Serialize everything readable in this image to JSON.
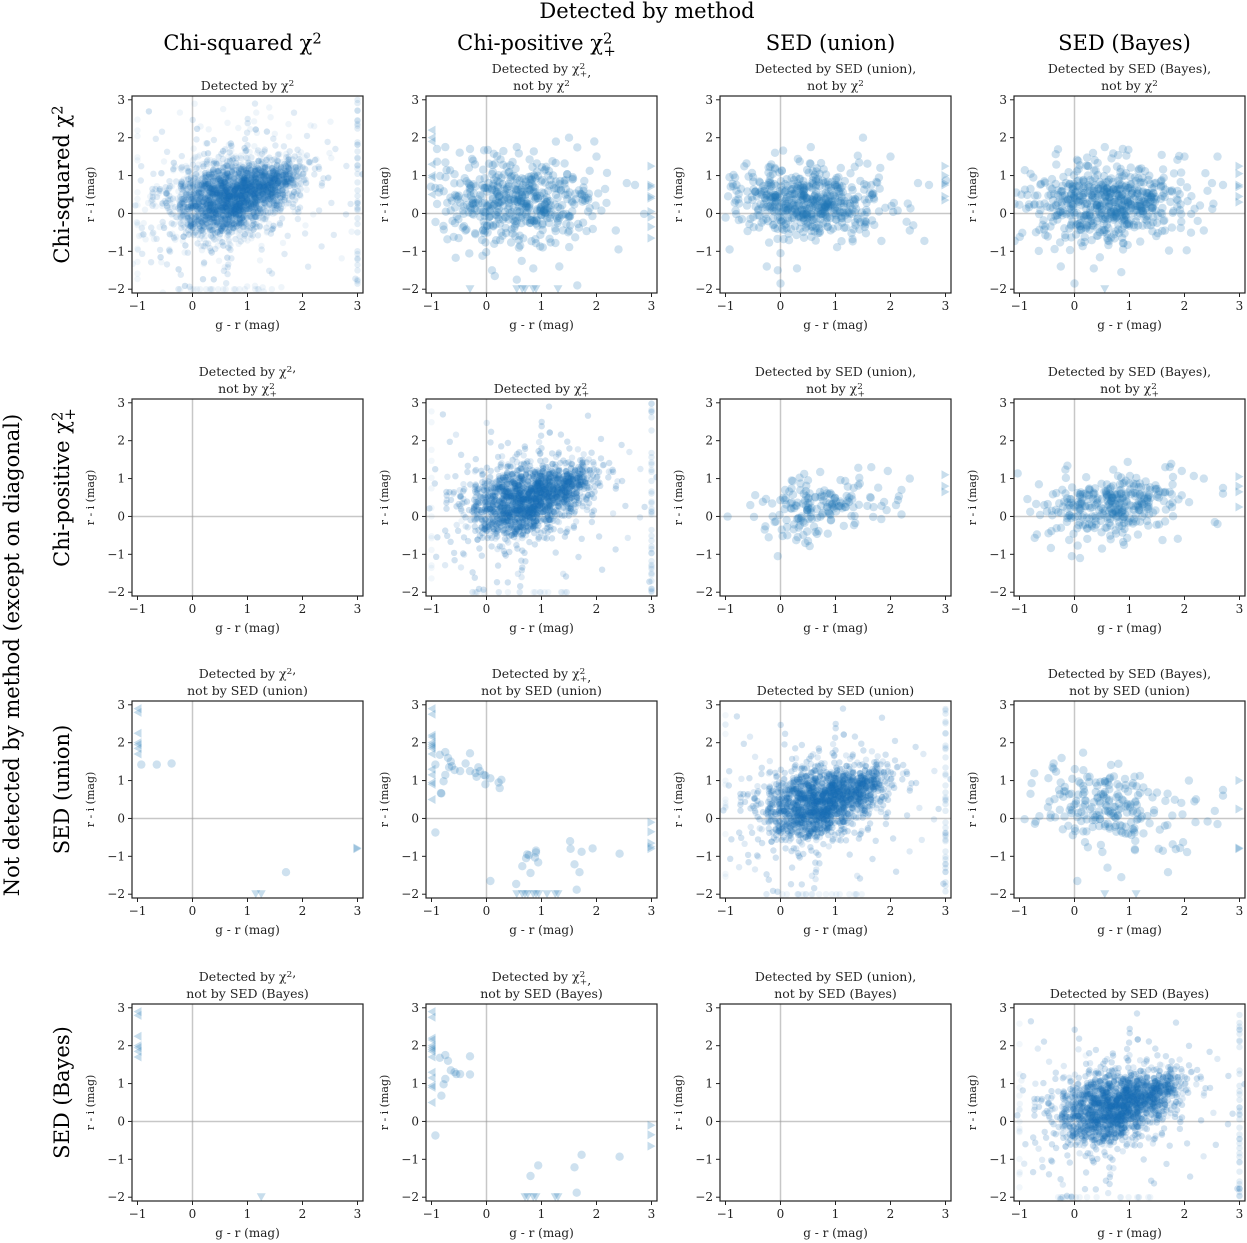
{
  "chart_data": {
    "type": "scatter",
    "suptitle": "Detected by method",
    "row_axis_title": "Not detected by method (except on diagonal)",
    "methods": [
      "Chi-squared χ²",
      "Chi-positive χ²₊",
      "SED (union)",
      "SED (Bayes)"
    ],
    "column_titles": [
      {
        "text": "Chi-squared χ",
        "sup": "2",
        "sub": ""
      },
      {
        "text": "Chi-positive χ",
        "sup": "2",
        "sub": "+"
      },
      {
        "text": "SED (union)",
        "sup": "",
        "sub": ""
      },
      {
        "text": "SED (Bayes)",
        "sup": "",
        "sub": ""
      }
    ],
    "row_titles": [
      {
        "text": "Chi-squared χ",
        "sup": "2",
        "sub": ""
      },
      {
        "text": "Chi-positive χ",
        "sup": "2",
        "sub": "+"
      },
      {
        "text": "SED (union)",
        "sup": "",
        "sub": ""
      },
      {
        "text": "SED (Bayes)",
        "sup": "",
        "sub": ""
      }
    ],
    "xlabel": "g - r (mag)",
    "ylabel": "r - i (mag)",
    "xlim": [
      -1.1,
      3.1
    ],
    "ylim": [
      -2.1,
      3.1
    ],
    "xticks": [
      -1,
      0,
      1,
      2,
      3
    ],
    "yticks": [
      -2,
      -1,
      0,
      1,
      2,
      3
    ],
    "reference_lines": {
      "x": 0,
      "y": 0
    },
    "clip_note": "points outside range drawn as triangle markers at the plot edge",
    "marker_color": "#1f77b4",
    "panels": [
      {
        "row": 0,
        "col": 0,
        "title": [
          "Detected by χ^2"
        ],
        "diagonal": true,
        "cloud": {
          "n": 5000,
          "cx": 0.6,
          "cy": 0.35,
          "sx": 0.45,
          "sy": 0.45,
          "tilt": 0.15,
          "arm": [
            1.4,
            0.8
          ]
        },
        "points": []
      },
      {
        "row": 0,
        "col": 1,
        "title": [
          "Detected by χ^2_+,",
          "not by χ^2"
        ],
        "diagonal": false,
        "cloud": {
          "n": 520,
          "cx": 0.55,
          "cy": 0.3,
          "sx": 0.7,
          "sy": 0.55,
          "tilt": 0.0,
          "arm": null
        },
        "points": [
          [
            -0.9,
            1.7
          ],
          [
            -0.75,
            1.75
          ],
          [
            -0.3,
            1.7
          ],
          [
            0.55,
            1.75
          ],
          [
            1.5,
            2.0
          ],
          [
            2.0,
            1.5
          ],
          [
            0.1,
            -1.5
          ],
          [
            0.15,
            -1.65
          ],
          [
            0.55,
            -1.75
          ],
          [
            1.65,
            -1.9
          ],
          [
            0.85,
            -1.45
          ],
          [
            -0.2,
            -0.55
          ],
          [
            2.4,
            -0.95
          ],
          [
            2.35,
            -0.45
          ],
          [
            2.55,
            0.8
          ],
          [
            2.7,
            0.75
          ]
        ],
        "edge": {
          "left": [
            2.2,
            2.0,
            1.9,
            1.3,
            1.0,
            0.95,
            0.5
          ],
          "right": [
            1.25,
            0.75,
            0.7,
            0.45,
            0.4,
            0.05,
            -0.1,
            -0.35,
            -0.65
          ],
          "bottom": [
            -0.3,
            0.55,
            0.65,
            0.7,
            0.85,
            0.9,
            1.3
          ]
        }
      },
      {
        "row": 0,
        "col": 2,
        "title": [
          "Detected by SED (union),",
          "not by χ^2"
        ],
        "diagonal": false,
        "cloud": {
          "n": 560,
          "cx": 0.55,
          "cy": 0.3,
          "sx": 0.65,
          "sy": 0.45,
          "tilt": 0.0,
          "arm": null
        },
        "points": [
          [
            -0.8,
            0.75
          ],
          [
            -0.1,
            1.6
          ],
          [
            0.55,
            1.75
          ],
          [
            1.5,
            2.0
          ],
          [
            2.0,
            1.5
          ],
          [
            0.0,
            -1.05
          ],
          [
            -0.05,
            -1.5
          ],
          [
            0.0,
            -1.85
          ],
          [
            -0.25,
            -1.4
          ],
          [
            0.3,
            -1.45
          ],
          [
            2.35,
            -0.45
          ],
          [
            2.5,
            0.8
          ],
          [
            2.7,
            0.75
          ]
        ],
        "edge": {
          "left": [],
          "right": [
            1.25,
            1.0,
            0.8,
            0.75,
            0.45,
            0.35
          ],
          "bottom": []
        }
      },
      {
        "row": 0,
        "col": 3,
        "title": [
          "Detected by SED (Bayes),",
          "not by χ^2"
        ],
        "diagonal": false,
        "cloud": {
          "n": 620,
          "cx": 0.55,
          "cy": 0.3,
          "sx": 0.7,
          "sy": 0.5,
          "tilt": 0.0,
          "arm": null
        },
        "points": [
          [
            -0.8,
            0.65
          ],
          [
            -0.75,
            0.95
          ],
          [
            0.55,
            1.75
          ],
          [
            2.6,
            1.5
          ],
          [
            2.0,
            1.5
          ],
          [
            0.0,
            -1.85
          ],
          [
            -0.25,
            -1.4
          ],
          [
            0.35,
            -1.45
          ],
          [
            0.85,
            -1.55
          ],
          [
            2.35,
            -0.45
          ],
          [
            2.5,
            0.8
          ],
          [
            2.7,
            0.75
          ]
        ],
        "edge": {
          "left": [],
          "right": [
            1.25,
            1.05,
            0.75,
            0.7,
            0.45,
            0.3
          ],
          "bottom": [
            0.55
          ]
        }
      },
      {
        "row": 1,
        "col": 0,
        "title": [
          "Detected by χ^2,",
          "not by χ^2_+"
        ],
        "diagonal": false,
        "cloud": null,
        "points": [],
        "edge": {
          "left": [],
          "right": [],
          "bottom": []
        }
      },
      {
        "row": 1,
        "col": 1,
        "title": [
          "Detected by χ^2_+"
        ],
        "diagonal": true,
        "cloud": {
          "n": 5000,
          "cx": 0.6,
          "cy": 0.35,
          "sx": 0.45,
          "sy": 0.45,
          "tilt": 0.15,
          "arm": [
            1.4,
            0.8
          ]
        },
        "points": []
      },
      {
        "row": 1,
        "col": 2,
        "title": [
          "Detected by SED (union),",
          "not by χ^2_+"
        ],
        "diagonal": false,
        "cloud": {
          "n": 170,
          "cx": 0.6,
          "cy": 0.25,
          "sx": 0.55,
          "sy": 0.35,
          "tilt": 0.2,
          "arm": null
        },
        "points": [
          [
            -0.55,
            0.3
          ],
          [
            -0.05,
            -1.05
          ],
          [
            1.65,
            1.3
          ],
          [
            1.95,
            1.2
          ],
          [
            2.35,
            1.0
          ],
          [
            2.2,
            0.7
          ],
          [
            2.1,
            0.3
          ],
          [
            2.2,
            0.05
          ],
          [
            0.45,
            -0.7
          ],
          [
            0.5,
            -0.65
          ],
          [
            1.15,
            -0.25
          ]
        ],
        "edge": {
          "left": [],
          "right": [
            1.1,
            0.8,
            0.65
          ],
          "bottom": []
        }
      },
      {
        "row": 1,
        "col": 3,
        "title": [
          "Detected by SED (Bayes),",
          "not by χ^2_+"
        ],
        "diagonal": false,
        "cloud": {
          "n": 330,
          "cx": 0.6,
          "cy": 0.3,
          "sx": 0.6,
          "sy": 0.4,
          "tilt": 0.1,
          "arm": null
        },
        "points": [
          [
            -0.55,
            0.3
          ],
          [
            -0.05,
            -1.05
          ],
          [
            0.1,
            -1.1
          ],
          [
            1.65,
            1.3
          ],
          [
            1.95,
            1.2
          ],
          [
            2.35,
            1.0
          ],
          [
            2.7,
            0.75
          ],
          [
            2.7,
            0.6
          ],
          [
            2.55,
            -0.15
          ],
          [
            2.6,
            -0.2
          ],
          [
            0.9,
            -0.75
          ],
          [
            0.5,
            -0.85
          ]
        ],
        "edge": {
          "left": [],
          "right": [
            1.05,
            0.8,
            0.65,
            0.25
          ],
          "bottom": []
        }
      },
      {
        "row": 2,
        "col": 0,
        "title": [
          "Detected by χ^2,",
          "not by SED (union)"
        ],
        "diagonal": false,
        "cloud": null,
        "points": [
          [
            -0.93,
            1.42
          ],
          [
            -0.65,
            1.42
          ],
          [
            -0.38,
            1.45
          ],
          [
            1.7,
            -1.42
          ]
        ],
        "edge": {
          "left": [
            2.9,
            2.8,
            2.25,
            2.0,
            1.95,
            1.85,
            1.7
          ],
          "right": [
            -0.8,
            -0.78
          ],
          "bottom": [
            1.15,
            1.25
          ]
        }
      },
      {
        "row": 2,
        "col": 1,
        "title": [
          "Detected by χ^2_+,",
          "not by SED (union)"
        ],
        "diagonal": false,
        "cloud": null,
        "points": [
          [
            -0.93,
            1.42
          ],
          [
            -0.85,
            1.68
          ],
          [
            -0.75,
            1.75
          ],
          [
            -0.7,
            1.6
          ],
          [
            -0.65,
            1.5
          ],
          [
            -0.68,
            1.35
          ],
          [
            -0.63,
            1.38
          ],
          [
            -0.58,
            1.28
          ],
          [
            -0.48,
            1.25
          ],
          [
            -0.38,
            1.45
          ],
          [
            -0.3,
            1.72
          ],
          [
            -0.3,
            1.25
          ],
          [
            -0.2,
            1.2
          ],
          [
            -0.15,
            1.35
          ],
          [
            -0.12,
            1.25
          ],
          [
            -0.05,
            1.15
          ],
          [
            -0.02,
            1.13
          ],
          [
            -0.18,
            1.1
          ],
          [
            -0.02,
            0.9
          ],
          [
            0.07,
            1.06
          ],
          [
            0.22,
            0.95
          ],
          [
            0.27,
            1.02
          ],
          [
            0.24,
            0.8
          ],
          [
            -0.78,
            0.98
          ],
          [
            -0.75,
            1.15
          ],
          [
            -0.83,
            0.67
          ],
          [
            -0.82,
            0.66
          ],
          [
            -0.93,
            -0.37
          ],
          [
            0.07,
            -1.65
          ],
          [
            0.54,
            -1.73
          ],
          [
            0.65,
            -1.26
          ],
          [
            0.72,
            -1.05
          ],
          [
            0.74,
            -0.95
          ],
          [
            0.77,
            -0.97
          ],
          [
            0.8,
            -1.44
          ],
          [
            0.88,
            -1.03
          ],
          [
            0.9,
            -0.85
          ],
          [
            0.9,
            -0.9
          ],
          [
            0.94,
            -1.16
          ],
          [
            1.52,
            -0.6
          ],
          [
            1.53,
            -0.8
          ],
          [
            1.6,
            -1.21
          ],
          [
            1.64,
            -1.88
          ],
          [
            1.69,
            -1.42
          ],
          [
            1.73,
            -0.88
          ],
          [
            1.93,
            -0.79
          ],
          [
            2.42,
            -0.93
          ]
        ],
        "edge": {
          "left": [
            2.9,
            2.75,
            2.2,
            2.15,
            2.0,
            1.95,
            1.9,
            1.85,
            1.7,
            1.3,
            1.15,
            0.95,
            0.9,
            0.5
          ],
          "right": [
            -0.1,
            -0.35,
            -0.65,
            -0.75,
            -0.8
          ],
          "bottom": [
            0.55,
            0.65,
            0.7,
            0.75,
            0.85,
            0.9,
            0.95,
            1.1,
            1.25,
            1.3
          ]
        }
      },
      {
        "row": 2,
        "col": 2,
        "title": [
          "Detected by SED (union)"
        ],
        "diagonal": true,
        "cloud": {
          "n": 5000,
          "cx": 0.6,
          "cy": 0.35,
          "sx": 0.45,
          "sy": 0.45,
          "tilt": 0.15,
          "arm": [
            1.4,
            0.8
          ]
        },
        "points": []
      },
      {
        "row": 2,
        "col": 3,
        "title": [
          "Detected by SED (Bayes),",
          "not by SED (union)"
        ],
        "diagonal": false,
        "cloud": {
          "n": 210,
          "cx": 0.55,
          "cy": 0.3,
          "sx": 0.55,
          "sy": 0.5,
          "tilt": -0.1,
          "arm": null
        },
        "points": [
          [
            -0.8,
            0.65
          ],
          [
            -0.78,
            0.93
          ],
          [
            -0.4,
            1.35
          ],
          [
            -0.38,
            1.45
          ],
          [
            0.05,
            -1.65
          ],
          [
            0.6,
            -1.3
          ],
          [
            0.85,
            -1.55
          ],
          [
            1.7,
            -1.42
          ],
          [
            2.08,
            1.0
          ],
          [
            2.18,
            0.45
          ],
          [
            2.55,
            0.2
          ],
          [
            2.7,
            0.75
          ],
          [
            2.7,
            0.6
          ],
          [
            2.6,
            -0.15
          ],
          [
            2.2,
            -0.1
          ],
          [
            2.42,
            -0.08
          ],
          [
            1.92,
            -0.78
          ],
          [
            1.53,
            -0.8
          ]
        ],
        "edge": {
          "left": [],
          "right": [
            1.0,
            0.25,
            -0.78,
            -0.8
          ],
          "bottom": [
            0.55,
            1.12
          ]
        }
      },
      {
        "row": 3,
        "col": 0,
        "title": [
          "Detected by χ^2,",
          "not by SED (Bayes)"
        ],
        "diagonal": false,
        "cloud": null,
        "points": [],
        "edge": {
          "left": [
            2.9,
            2.8,
            2.25,
            2.0,
            1.95,
            1.85,
            1.7
          ],
          "right": [],
          "bottom": [
            1.25
          ]
        }
      },
      {
        "row": 3,
        "col": 1,
        "title": [
          "Detected by χ^2_+,",
          "not by SED (Bayes)"
        ],
        "diagonal": false,
        "cloud": null,
        "points": [
          [
            -0.85,
            1.68
          ],
          [
            -0.75,
            1.75
          ],
          [
            -0.7,
            1.6
          ],
          [
            -0.65,
            1.35
          ],
          [
            -0.58,
            1.3
          ],
          [
            -0.55,
            1.25
          ],
          [
            -0.48,
            1.25
          ],
          [
            -0.3,
            1.72
          ],
          [
            -0.3,
            1.24
          ],
          [
            -0.75,
            1.12
          ],
          [
            -0.78,
            0.98
          ],
          [
            -0.82,
            0.68
          ],
          [
            -0.93,
            -0.37
          ],
          [
            0.8,
            -1.44
          ],
          [
            0.94,
            -1.16
          ],
          [
            1.6,
            -1.21
          ],
          [
            1.64,
            -1.88
          ],
          [
            1.73,
            -0.88
          ],
          [
            2.42,
            -0.93
          ]
        ],
        "edge": {
          "left": [
            2.9,
            2.75,
            2.2,
            2.15,
            2.0,
            1.95,
            1.9,
            1.85,
            1.7,
            1.3,
            1.15,
            0.95,
            0.9,
            0.5
          ],
          "right": [
            -0.1,
            -0.35,
            -0.65
          ],
          "bottom": [
            0.7,
            0.75,
            0.85,
            0.9,
            1.25,
            1.3
          ]
        }
      },
      {
        "row": 3,
        "col": 2,
        "title": [
          "Detected by SED (union),",
          "not by SED (Bayes)"
        ],
        "diagonal": false,
        "cloud": null,
        "points": [],
        "edge": {
          "left": [],
          "right": [],
          "bottom": []
        }
      },
      {
        "row": 3,
        "col": 3,
        "title": [
          "Detected by SED (Bayes)"
        ],
        "diagonal": true,
        "cloud": {
          "n": 5000,
          "cx": 0.6,
          "cy": 0.3,
          "sx": 0.45,
          "sy": 0.45,
          "tilt": 0.15,
          "arm": [
            1.4,
            0.75
          ]
        },
        "points": []
      }
    ]
  }
}
